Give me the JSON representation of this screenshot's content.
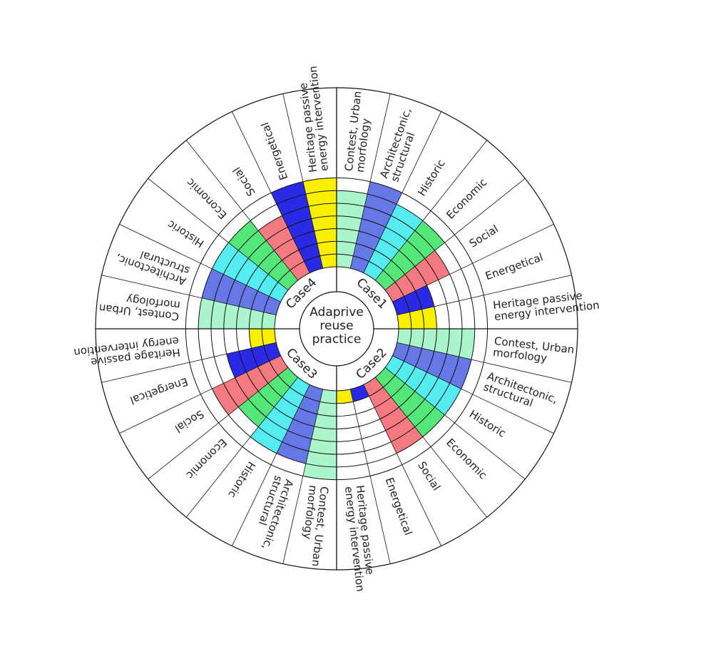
{
  "chart_data": {
    "type": "radial-stacked-bar",
    "title": "",
    "center_label": [
      "Adaprive",
      "reuse",
      "practice"
    ],
    "max_level": 7,
    "colors": {
      "Contest, Urban morfology": "#aaf5cc",
      "Architectonic, structural": "#6677e6",
      "Historic": "#55ecf0",
      "Economic": "#55e67a",
      "Social": "#f27a80",
      "Energetical": "#2a2ae6",
      "Heritage passive energy intervention": "#f8f000"
    },
    "categories": [
      "Contest, Urban morfology",
      "Architectonic, structural",
      "Historic",
      "Economic",
      "Social",
      "Energetical",
      "Heritage passive energy intervention"
    ],
    "category_labels": [
      [
        "Contest, Urban",
        "morfology"
      ],
      [
        "Architectonic,",
        "structural"
      ],
      [
        "Historic"
      ],
      [
        "Economic"
      ],
      [
        "Social"
      ],
      [
        "Energetical"
      ],
      [
        "Heritage passive",
        "energy intervention"
      ]
    ],
    "series": [
      {
        "name": "Case1",
        "values": [
          6,
          7,
          6,
          6,
          5,
          3,
          3
        ]
      },
      {
        "name": "Case2",
        "values": [
          6,
          6,
          6,
          6,
          6,
          1,
          1
        ]
      },
      {
        "name": "Case3",
        "values": [
          7,
          6,
          6,
          5,
          6,
          4,
          2
        ]
      },
      {
        "name": "Case4",
        "values": [
          6,
          6,
          6,
          6,
          5,
          7,
          7
        ]
      }
    ]
  }
}
